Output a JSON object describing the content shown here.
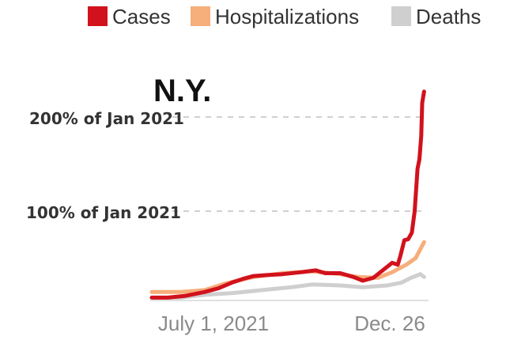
{
  "chart_data": {
    "type": "line",
    "title": "N.Y.",
    "legend": {
      "placement": "top-right",
      "entries": [
        {
          "name": "Cases",
          "color": "#d1121c"
        },
        {
          "name": "Hospitalizations",
          "color": "#f6ae7a"
        },
        {
          "name": "Deaths",
          "color": "#cfcfcf"
        }
      ]
    },
    "x_ticks": [
      {
        "label": "July 1, 2021",
        "date": "2021-07-01"
      },
      {
        "label": "Dec. 26",
        "date": "2021-12-26"
      }
    ],
    "y_unit": "percent of Jan 2021 level",
    "y_reference_lines": [
      {
        "label": "100% of Jan 2021",
        "value": 100
      },
      {
        "label": "200% of Jan 2021",
        "value": 200
      }
    ],
    "ylim": [
      0,
      235
    ],
    "x_range": [
      "2021-03-15",
      "2022-01-01"
    ],
    "grid": "dashed reference lines only",
    "series": [
      {
        "name": "Cases",
        "color": "#d1121c",
        "points": [
          [
            "2021-03-15",
            3
          ],
          [
            "2021-04-01",
            3
          ],
          [
            "2021-04-20",
            5
          ],
          [
            "2021-05-10",
            9
          ],
          [
            "2021-05-25",
            13
          ],
          [
            "2021-06-08",
            19
          ],
          [
            "2021-06-20",
            23
          ],
          [
            "2021-07-01",
            26
          ],
          [
            "2021-07-15",
            27
          ],
          [
            "2021-08-01",
            28
          ],
          [
            "2021-08-20",
            30
          ],
          [
            "2021-09-05",
            32
          ],
          [
            "2021-09-15",
            29
          ],
          [
            "2021-10-01",
            29
          ],
          [
            "2021-10-15",
            25
          ],
          [
            "2021-10-25",
            21
          ],
          [
            "2021-11-05",
            24
          ],
          [
            "2021-11-15",
            32
          ],
          [
            "2021-11-25",
            40
          ],
          [
            "2021-12-01",
            38
          ],
          [
            "2021-12-04",
            48
          ],
          [
            "2021-12-08",
            64
          ],
          [
            "2021-12-12",
            65
          ],
          [
            "2021-12-16",
            72
          ],
          [
            "2021-12-19",
            95
          ],
          [
            "2021-12-22",
            140
          ],
          [
            "2021-12-24",
            150
          ],
          [
            "2021-12-26",
            175
          ],
          [
            "2021-12-27",
            210
          ],
          [
            "2021-12-29",
            222
          ]
        ]
      },
      {
        "name": "Hospitalizations",
        "color": "#f6ae7a",
        "points": [
          [
            "2021-03-15",
            9
          ],
          [
            "2021-04-15",
            9
          ],
          [
            "2021-05-10",
            11
          ],
          [
            "2021-06-01",
            18
          ],
          [
            "2021-07-01",
            25
          ],
          [
            "2021-08-01",
            29
          ],
          [
            "2021-09-01",
            31
          ],
          [
            "2021-10-01",
            28
          ],
          [
            "2021-10-20",
            25
          ],
          [
            "2021-11-10",
            24
          ],
          [
            "2021-11-25",
            30
          ],
          [
            "2021-12-10",
            38
          ],
          [
            "2021-12-20",
            45
          ],
          [
            "2021-12-29",
            62
          ]
        ]
      },
      {
        "name": "Deaths",
        "color": "#cfcfcf",
        "points": [
          [
            "2021-03-15",
            3
          ],
          [
            "2021-04-15",
            3
          ],
          [
            "2021-05-10",
            6
          ],
          [
            "2021-06-10",
            8
          ],
          [
            "2021-07-10",
            11
          ],
          [
            "2021-08-10",
            14
          ],
          [
            "2021-09-01",
            17
          ],
          [
            "2021-10-01",
            16
          ],
          [
            "2021-10-25",
            14
          ],
          [
            "2021-11-20",
            16
          ],
          [
            "2021-12-05",
            19
          ],
          [
            "2021-12-15",
            24
          ],
          [
            "2021-12-25",
            28
          ],
          [
            "2021-12-29",
            25
          ]
        ]
      }
    ]
  }
}
